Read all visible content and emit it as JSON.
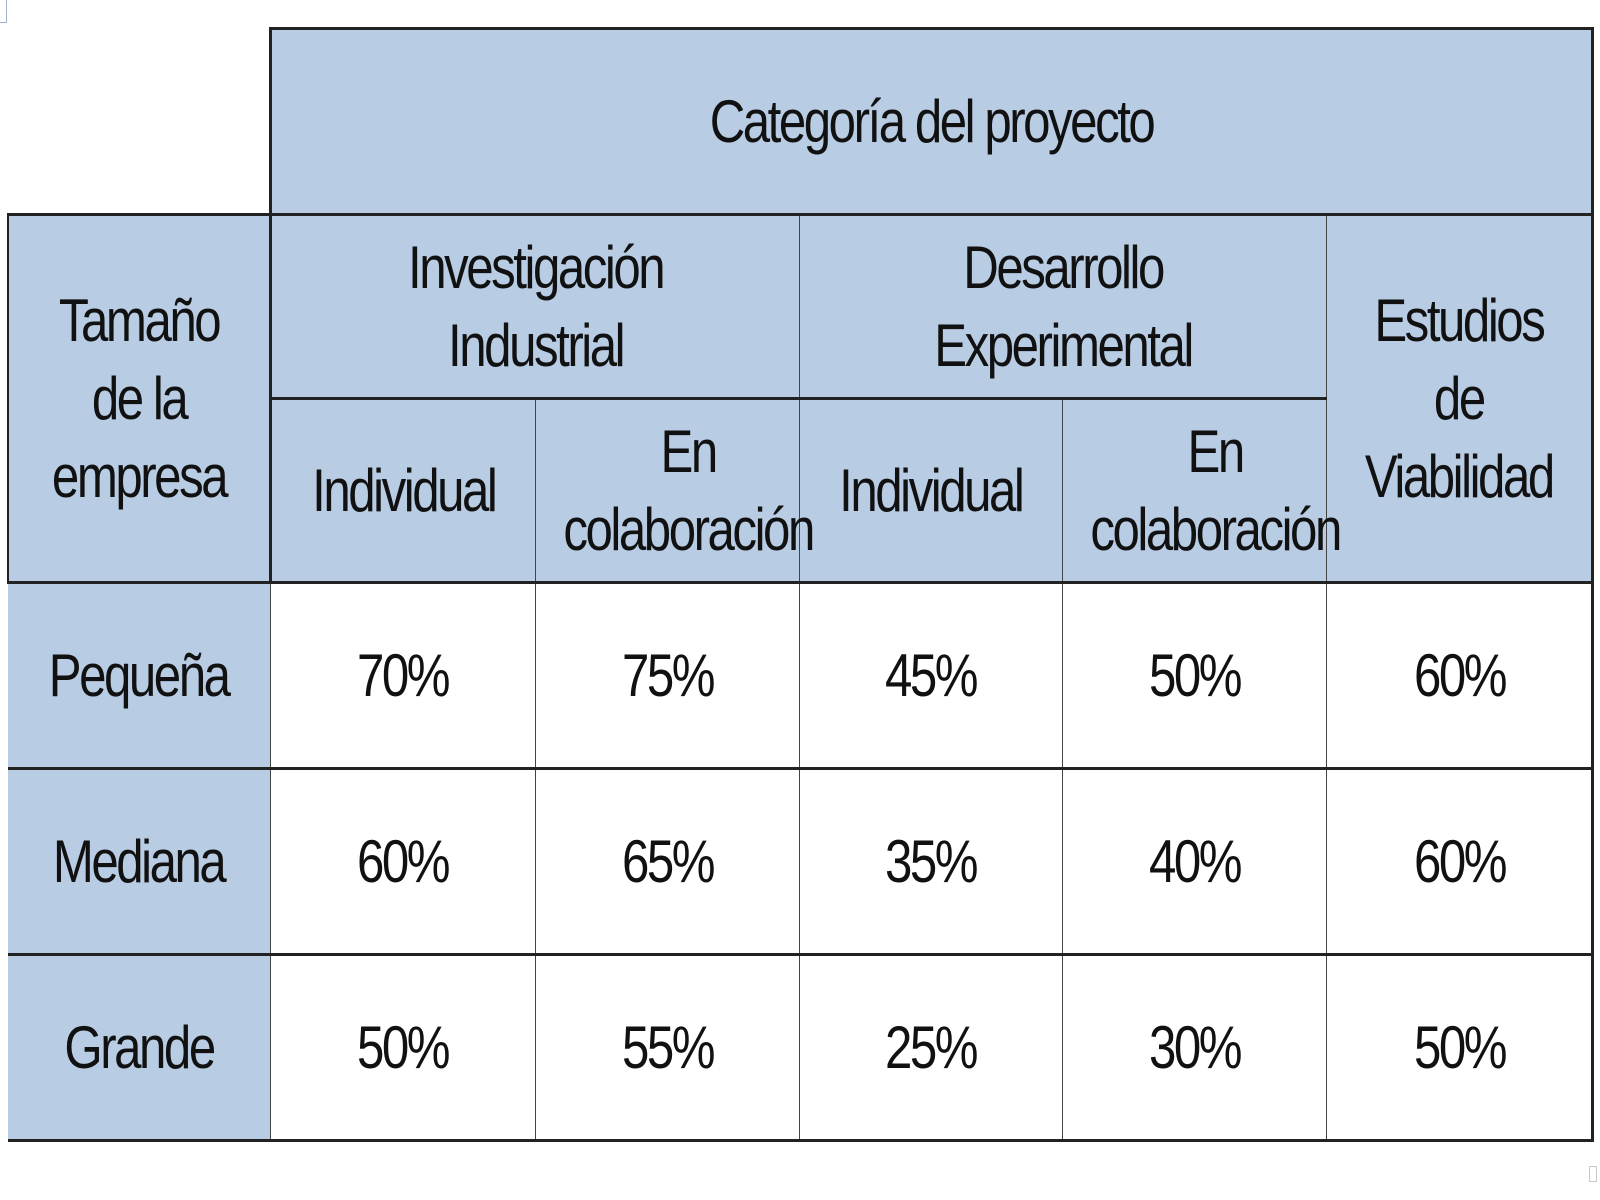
{
  "table": {
    "title": "Categoría del proyecto",
    "row_header": "Tamaño de la empresa",
    "groups": [
      {
        "label": "Investigación Industrial",
        "subcolumns": [
          "Individual",
          "En colaboración"
        ]
      },
      {
        "label": "Desarrollo Experimental",
        "subcolumns": [
          "Individual",
          "En colaboración"
        ]
      }
    ],
    "last_column": "Estudios de Viabilidad",
    "rows": [
      {
        "label": "Pequeña",
        "values": [
          "70%",
          "75%",
          "45%",
          "50%",
          "60%"
        ]
      },
      {
        "label": "Mediana",
        "values": [
          "60%",
          "65%",
          "35%",
          "40%",
          "60%"
        ]
      },
      {
        "label": "Grande",
        "values": [
          "50%",
          "55%",
          "25%",
          "30%",
          "50%"
        ]
      }
    ]
  },
  "colors": {
    "header_bg": "#b8cce4",
    "border": "#222222",
    "cell_bg": "#ffffff"
  }
}
